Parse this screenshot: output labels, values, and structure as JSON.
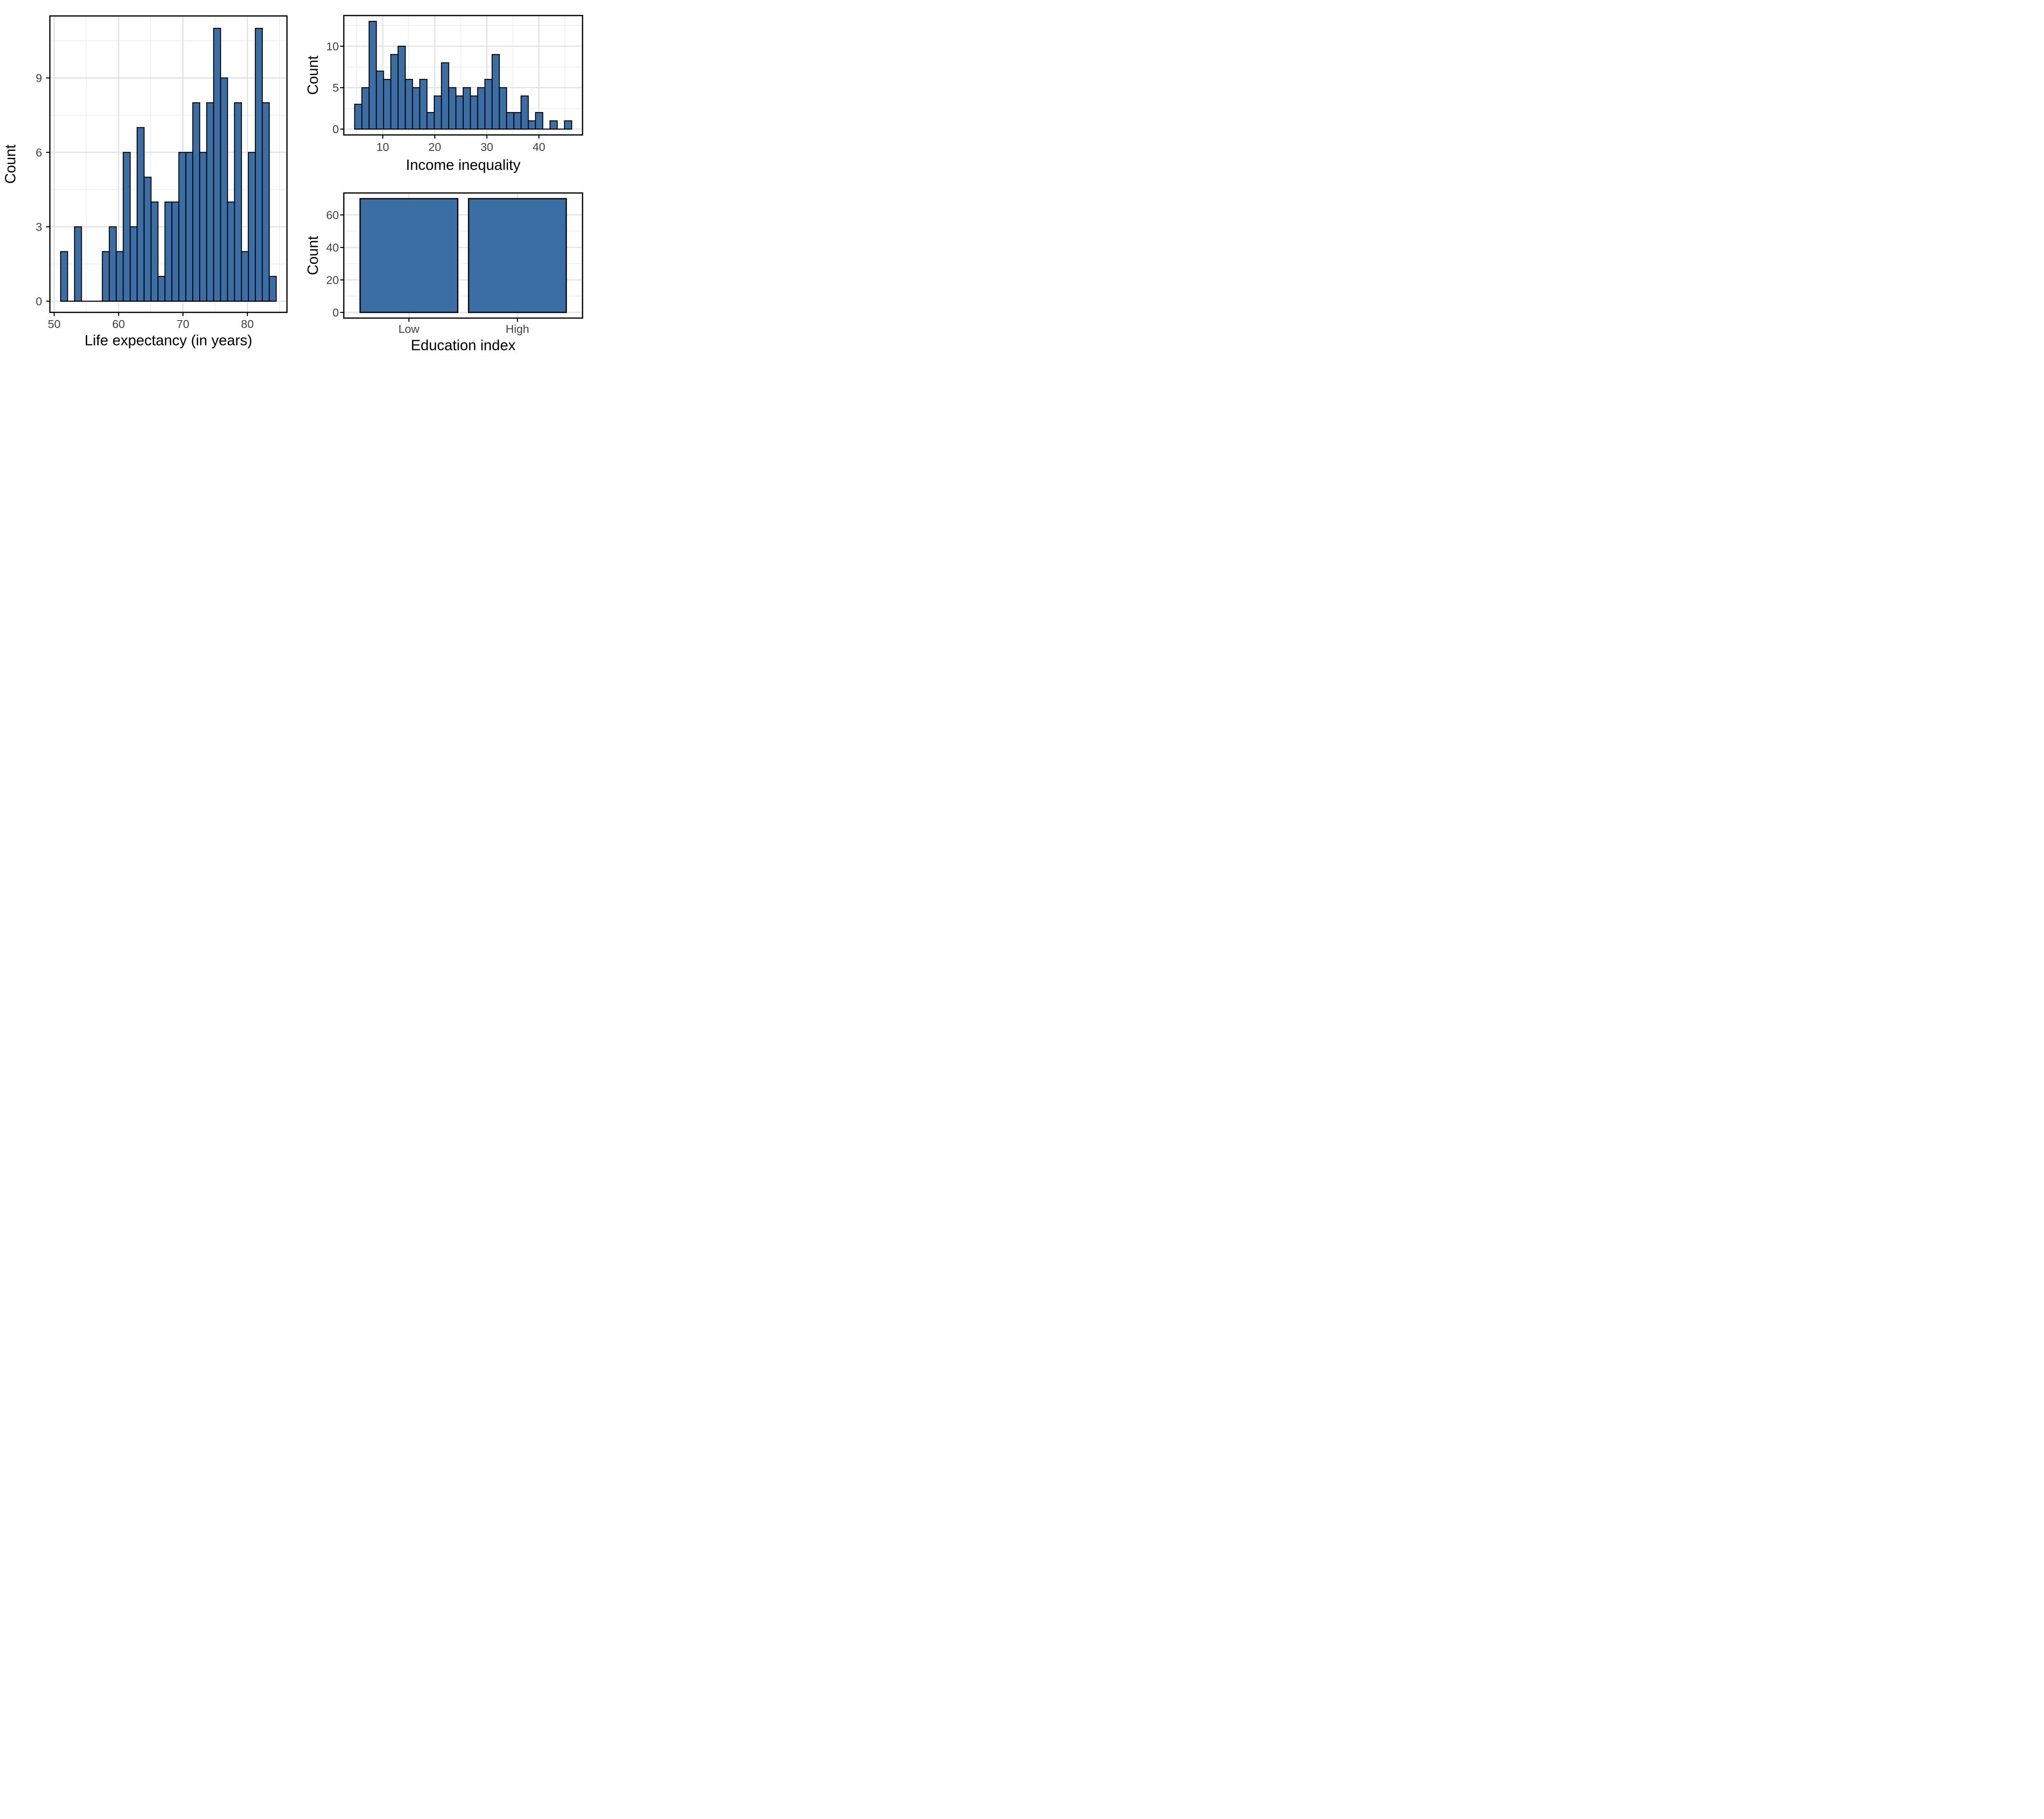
{
  "style": {
    "background": "#FFFFFF",
    "bar_fill": "#3A6EA5",
    "bar_stroke": "#000000",
    "grid_major_color": "#E3E3E3",
    "grid_minor_color": "#ECECEC",
    "panel_border_color": "#000000",
    "axis_tick_color": "#000000",
    "tick_label_color": "#404040",
    "axis_title_color": "#000000"
  },
  "chart_data": [
    {
      "id": "life-expectancy-histogram",
      "type": "bar",
      "subtype": "histogram",
      "title": "",
      "xlabel": "Life expectancy (in years)",
      "ylabel": "Count",
      "bin_start": 51,
      "bin_width": 1.08,
      "values": [
        2,
        0,
        3,
        0,
        0,
        0,
        2,
        3,
        2,
        6,
        3,
        7,
        5,
        4,
        1,
        4,
        4,
        6,
        6,
        8,
        6,
        8,
        11,
        9,
        4,
        8,
        2,
        6,
        11,
        8,
        1
      ],
      "x_ticks": [
        50,
        60,
        70,
        80
      ],
      "x_minor_ticks": [
        55,
        65,
        75,
        85
      ],
      "y_ticks": [
        0,
        3,
        6,
        9
      ],
      "y_minor_ticks": [
        1.5,
        4.5,
        7.5,
        10.5
      ],
      "xlim": [
        49.33,
        86.15
      ],
      "ylim": [
        -0.45,
        11.5
      ],
      "grid": true,
      "legend": "none"
    },
    {
      "id": "income-inequality-histogram",
      "type": "bar",
      "subtype": "histogram",
      "title": "",
      "xlabel": "Income inequality",
      "ylabel": "Count",
      "bin_start": 4.6,
      "bin_width": 1.39,
      "values": [
        3,
        5,
        13,
        7,
        6,
        9,
        10,
        6,
        5,
        6,
        2,
        4,
        8,
        5,
        4,
        5,
        4,
        5,
        6,
        9,
        5,
        2,
        2,
        4,
        1,
        2,
        0,
        1,
        0,
        1
      ],
      "x_ticks": [
        10,
        20,
        30,
        40
      ],
      "x_minor_ticks": [
        5,
        15,
        25,
        35,
        45
      ],
      "y_ticks": [
        0,
        5,
        10
      ],
      "y_minor_ticks": [
        2.5,
        7.5,
        12.5
      ],
      "xlim": [
        2.52,
        48.38
      ],
      "ylim": [
        -0.7,
        13.7
      ],
      "grid": true,
      "legend": "none"
    },
    {
      "id": "education-index-bar",
      "type": "bar",
      "subtype": "categorical",
      "title": "",
      "xlabel": "Education index",
      "ylabel": "Count",
      "categories": [
        "Low",
        "High"
      ],
      "values": [
        70,
        70
      ],
      "bar_width": 0.9,
      "x_ticks": [
        1,
        2
      ],
      "y_ticks": [
        0,
        20,
        40,
        60
      ],
      "y_minor_ticks": [
        10,
        30,
        50,
        70
      ],
      "xlim": [
        0.4,
        2.6
      ],
      "ylim": [
        -3.5,
        73.5
      ],
      "grid": true,
      "legend": "none"
    }
  ]
}
